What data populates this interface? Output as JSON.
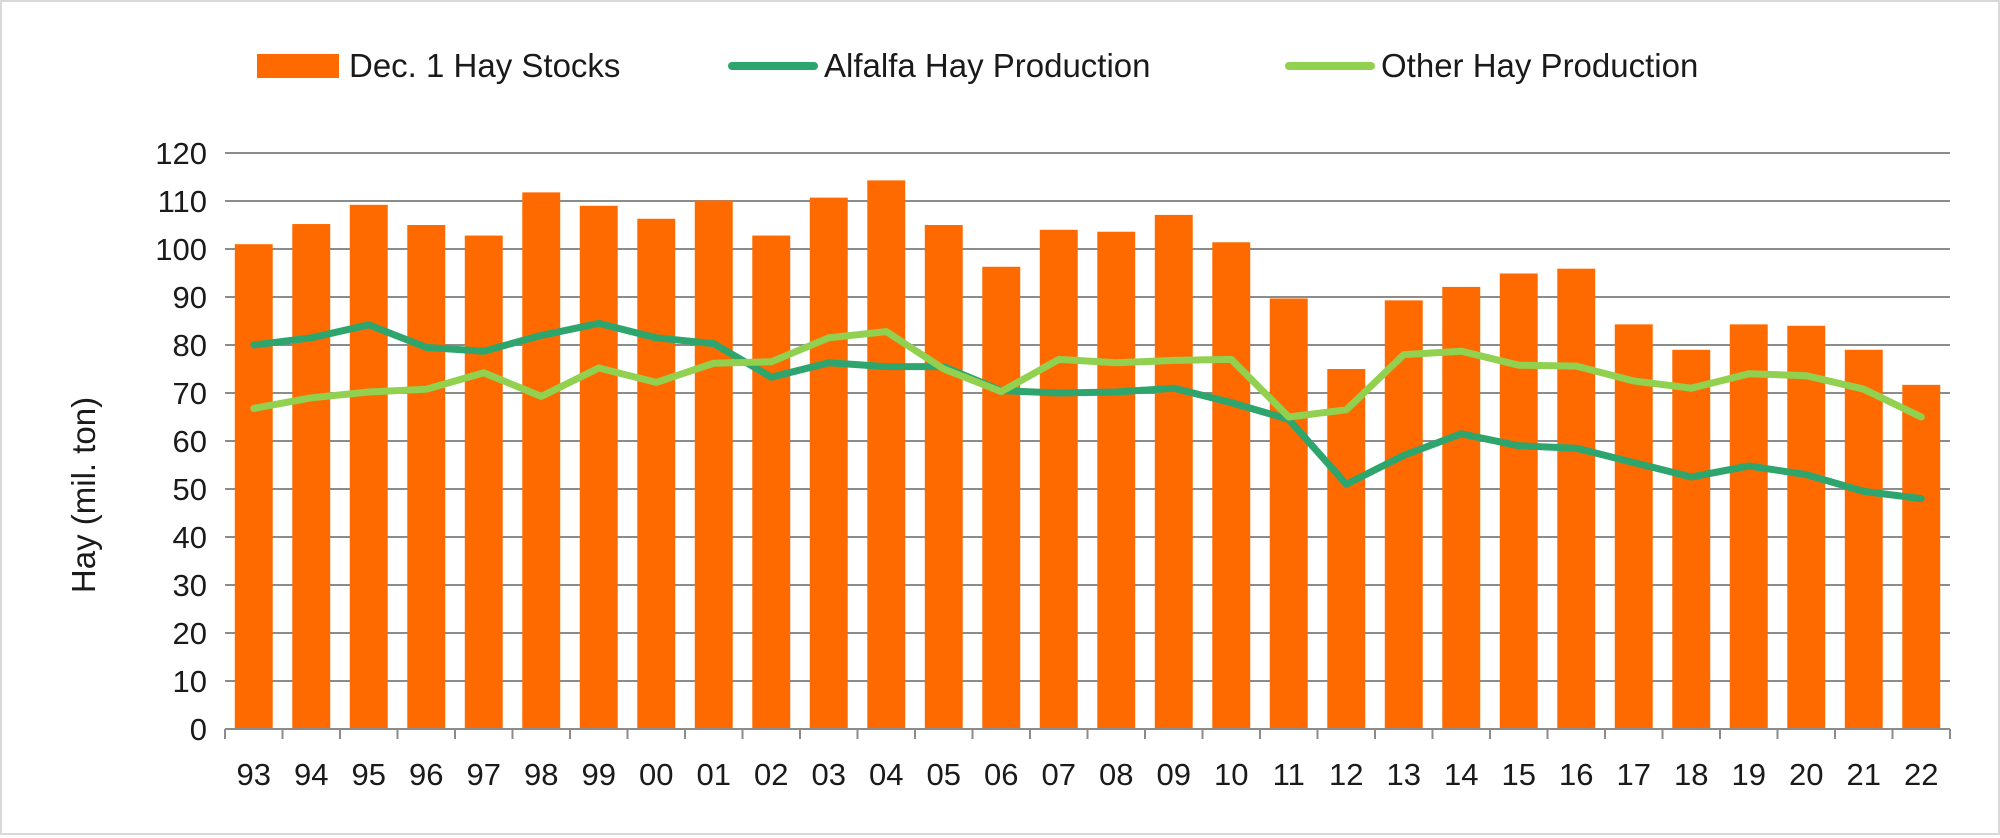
{
  "chart_data": {
    "type": "bar",
    "title": "",
    "xlabel": "",
    "ylabel": "Hay (mil. ton)",
    "ylim": [
      0,
      120
    ],
    "yticks": [
      0,
      10,
      20,
      30,
      40,
      50,
      60,
      70,
      80,
      90,
      100,
      110,
      120
    ],
    "grid": true,
    "legend": "top",
    "categories": [
      "93",
      "94",
      "95",
      "96",
      "97",
      "98",
      "99",
      "00",
      "01",
      "02",
      "03",
      "04",
      "05",
      "06",
      "07",
      "08",
      "09",
      "10",
      "11",
      "12",
      "13",
      "14",
      "15",
      "16",
      "17",
      "18",
      "19",
      "20",
      "21",
      "22"
    ],
    "series": [
      {
        "name": "Dec. 1 Hay Stocks",
        "type": "bar",
        "color": "#ff6a00",
        "values": [
          101,
          105.2,
          109.2,
          105,
          102.8,
          111.8,
          109,
          106.3,
          110.1,
          102.8,
          110.7,
          114.3,
          105,
          96.3,
          104,
          103.6,
          107.1,
          101.4,
          89.7,
          75,
          89.3,
          92.1,
          94.9,
          95.9,
          84.3,
          79,
          84.3,
          84,
          79,
          71.7
        ]
      },
      {
        "name": "Alfalfa Hay Production",
        "type": "line",
        "color": "#2da56c",
        "values": [
          80,
          81.5,
          84.2,
          79.5,
          78.7,
          82,
          84.5,
          81.5,
          80.3,
          73.3,
          76.3,
          75.5,
          75.5,
          70.5,
          70,
          70.2,
          71,
          68,
          64.5,
          51,
          57,
          61.5,
          59,
          58.5,
          55.5,
          52.5,
          54.8,
          53,
          49.5,
          48
        ]
      },
      {
        "name": "Other Hay Production",
        "type": "line",
        "color": "#92d050",
        "values": [
          66.8,
          69,
          70.2,
          70.8,
          74.2,
          69.3,
          75.2,
          72.2,
          76.2,
          76.5,
          81.5,
          82.8,
          75,
          70.3,
          77,
          76.3,
          76.8,
          77,
          65,
          66.5,
          78,
          78.7,
          75.8,
          75.6,
          72.5,
          71,
          74,
          73.6,
          70.8,
          65
        ]
      }
    ]
  }
}
